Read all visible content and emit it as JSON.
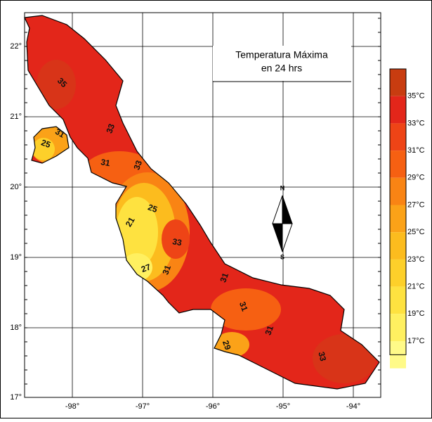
{
  "map": {
    "title": [
      "Temperatura Máxima",
      "en 24 hrs"
    ],
    "lon_labels": [
      "-98°",
      "-97°",
      "-96°",
      "-95°",
      "-94°"
    ],
    "lat_labels": [
      "22°",
      "21°",
      "20°",
      "19°",
      "18°",
      "17°"
    ],
    "legend": {
      "top_color": "#c83c10",
      "items": [
        {
          "label": "35°C",
          "color": "#e3261a"
        },
        {
          "label": "33°C",
          "color": "#ee4416"
        },
        {
          "label": "31°C",
          "color": "#f66012"
        },
        {
          "label": "29°C",
          "color": "#f98414"
        },
        {
          "label": "27°C",
          "color": "#fba218"
        },
        {
          "label": "25°C",
          "color": "#fcbc1e"
        },
        {
          "label": "23°C",
          "color": "#fdd02a"
        },
        {
          "label": "21°C",
          "color": "#fee240"
        },
        {
          "label": "19°C",
          "color": "#fff060"
        },
        {
          "label": "17°C",
          "color": "#fffa88"
        }
      ]
    },
    "contour_labels": [
      "35",
      "31",
      "25",
      "33",
      "31",
      "33",
      "25",
      "21",
      "33",
      "27",
      "31",
      "31",
      "31",
      "29",
      "31",
      "33"
    ],
    "compass": [
      "N",
      "S"
    ]
  }
}
